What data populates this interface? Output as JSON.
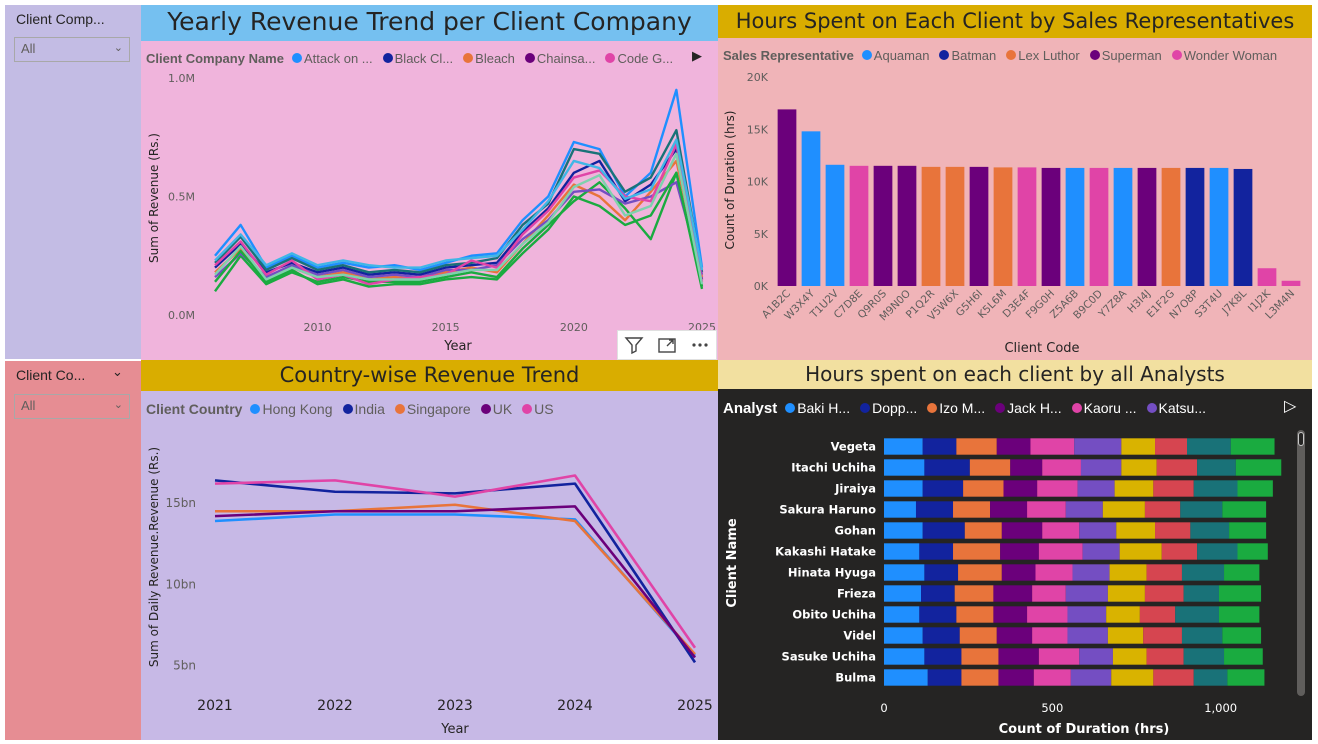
{
  "slicers": [
    {
      "label": "Client Comp...",
      "value": "All"
    },
    {
      "label": "Client Co...",
      "value": "All"
    }
  ],
  "colors": {
    "blue": "#1f8fff",
    "navy": "#12239e",
    "orange": "#e8743b",
    "purple": "#6b007b",
    "pink": "#e044a7",
    "violet": "#744ec2",
    "gold": "#d9b300",
    "red": "#d64550",
    "teal": "#197278",
    "green": "#1aab40"
  },
  "icons": [
    "filter-icon",
    "focus-mode-icon",
    "more-options-icon",
    "chevron-down-icon",
    "play-arrow-icon"
  ],
  "charts": {
    "yearly": {
      "title": "Yearly Revenue Trend per Client Company",
      "legend_title": "Client Company Name",
      "legend": [
        "Attack on ...",
        "Black Cl...",
        "Bleach",
        "Chainsa...",
        "Code G..."
      ],
      "xlabel": "Year",
      "ylabel": "Sum of Revenue (Rs.)"
    },
    "hours_sales": {
      "title": "Hours Spent on Each Client by Sales Representatives",
      "legend_title": "Sales Representative",
      "legend": [
        "Aquaman",
        "Batman",
        "Lex Luthor",
        "Superman",
        "Wonder Woman"
      ],
      "xlabel": "Client Code",
      "ylabel": "Count of Duration (hrs)"
    },
    "country": {
      "title": "Country-wise Revenue Trend",
      "legend_title": "Client Country",
      "legend": [
        "Hong Kong",
        "India",
        "Singapore",
        "UK",
        "US"
      ],
      "xlabel": "Year",
      "ylabel": "Sum of Daily Revenue.Revenue (Rs.)"
    },
    "analysts": {
      "title": "Hours spent on each client by all Analysts",
      "legend_title": "Analyst",
      "legend": [
        "Baki H...",
        "Dopp...",
        "Izo M...",
        "Jack H...",
        "Kaoru ...",
        "Katsu..."
      ],
      "xlabel": "Count of Duration (hrs)",
      "ylabel": "Client Name"
    }
  },
  "chart_data": [
    {
      "type": "line",
      "title": "Yearly Revenue Trend per Client Company",
      "xlabel": "Year",
      "ylabel": "Sum of Revenue (Rs.)",
      "x": [
        2006,
        2007,
        2008,
        2009,
        2010,
        2011,
        2012,
        2013,
        2014,
        2015,
        2016,
        2017,
        2018,
        2019,
        2020,
        2021,
        2022,
        2023,
        2024,
        2025
      ],
      "xticks": [
        "2010",
        "2015",
        "2020",
        "2025"
      ],
      "yticks": [
        "0.0M",
        "0.5M",
        "1.0M"
      ],
      "ylim": [
        0,
        1000000
      ],
      "series": [
        {
          "values": [
            250000,
            380000,
            200000,
            250000,
            200000,
            220000,
            200000,
            210000,
            190000,
            220000,
            250000,
            260000,
            400000,
            500000,
            730000,
            700000,
            500000,
            600000,
            950000,
            200000
          ]
        },
        {
          "values": [
            200000,
            300000,
            180000,
            220000,
            180000,
            200000,
            170000,
            180000,
            170000,
            200000,
            210000,
            220000,
            350000,
            450000,
            600000,
            650000,
            480000,
            550000,
            700000,
            150000
          ]
        },
        {
          "values": [
            180000,
            280000,
            150000,
            200000,
            160000,
            180000,
            150000,
            160000,
            150000,
            180000,
            200000,
            180000,
            300000,
            420000,
            550000,
            500000,
            400000,
            520000,
            650000,
            160000
          ]
        },
        {
          "values": [
            100000,
            250000,
            130000,
            180000,
            140000,
            160000,
            140000,
            140000,
            140000,
            160000,
            180000,
            160000,
            280000,
            380000,
            480000,
            560000,
            450000,
            320000,
            600000,
            120000
          ]
        },
        {
          "values": [
            220000,
            330000,
            190000,
            240000,
            190000,
            210000,
            180000,
            190000,
            180000,
            210000,
            220000,
            240000,
            380000,
            470000,
            700000,
            680000,
            520000,
            580000,
            780000,
            180000
          ]
        },
        {
          "values": [
            160000,
            260000,
            160000,
            210000,
            170000,
            190000,
            160000,
            170000,
            160000,
            190000,
            190000,
            210000,
            320000,
            400000,
            520000,
            530000,
            470000,
            500000,
            560000,
            170000
          ]
        },
        {
          "values": [
            210000,
            310000,
            170000,
            230000,
            150000,
            170000,
            130000,
            150000,
            160000,
            170000,
            230000,
            200000,
            340000,
            440000,
            580000,
            610000,
            500000,
            480000,
            720000,
            140000
          ]
        },
        {
          "values": [
            140000,
            270000,
            140000,
            190000,
            130000,
            150000,
            120000,
            130000,
            130000,
            150000,
            160000,
            150000,
            260000,
            360000,
            500000,
            460000,
            380000,
            420000,
            600000,
            110000
          ]
        },
        {
          "values": [
            230000,
            340000,
            210000,
            260000,
            210000,
            230000,
            210000,
            200000,
            200000,
            230000,
            240000,
            250000,
            360000,
            480000,
            650000,
            620000,
            490000,
            530000,
            740000,
            190000
          ]
        },
        {
          "values": [
            170000,
            290000,
            150000,
            200000,
            160000,
            170000,
            150000,
            150000,
            150000,
            170000,
            190000,
            190000,
            300000,
            390000,
            540000,
            590000,
            420000,
            460000,
            680000,
            130000
          ]
        }
      ]
    },
    {
      "type": "bar",
      "title": "Hours Spent on Each Client by Sales Representatives",
      "xlabel": "Client Code",
      "ylabel": "Count of Duration (hrs)",
      "yticks": [
        "0K",
        "5K",
        "10K",
        "15K",
        "20K"
      ],
      "ylim": [
        0,
        20000
      ],
      "categories": [
        "A1B2C",
        "W3X4Y",
        "T1U2V",
        "C7D8E",
        "Q9R0S",
        "M9N0O",
        "P1Q2R",
        "V5W6X",
        "G5H6I",
        "K5L6M",
        "D3E4F",
        "F9G0H",
        "Z5A6B",
        "B9C0D",
        "Y7Z8A",
        "H3I4J",
        "E1F2G",
        "N7O8P",
        "S3T4U",
        "J7K8L",
        "I1J2K",
        "L3M4N"
      ],
      "values": [
        16900,
        14800,
        11600,
        11500,
        11500,
        11500,
        11400,
        11400,
        11400,
        11350,
        11350,
        11300,
        11300,
        11300,
        11300,
        11300,
        11300,
        11300,
        11300,
        11200,
        1700,
        500
      ],
      "series_by_bar": [
        "Superman",
        "Aquaman",
        "Aquaman",
        "Wonder Woman",
        "Superman",
        "Superman",
        "Lex Luthor",
        "Lex Luthor",
        "Superman",
        "Lex Luthor",
        "Wonder Woman",
        "Superman",
        "Aquaman",
        "Wonder Woman",
        "Aquaman",
        "Superman",
        "Lex Luthor",
        "Batman",
        "Aquaman",
        "Batman",
        "Wonder Woman",
        "Wonder Woman"
      ]
    },
    {
      "type": "line",
      "title": "Country-wise Revenue Trend",
      "xlabel": "Year",
      "ylabel": "Sum of Daily Revenue.Revenue (Rs.)",
      "x": [
        2021,
        2022,
        2023,
        2024,
        2025
      ],
      "xticks": [
        "2021",
        "2022",
        "2023",
        "2024",
        "2025"
      ],
      "yticks": [
        "5bn",
        "10bn",
        "15bn"
      ],
      "ylim": [
        3500000000,
        19500000000
      ],
      "series": [
        {
          "name": "Hong Kong",
          "values": [
            13900000000,
            14300000000,
            14300000000,
            14000000000,
            5600000000
          ]
        },
        {
          "name": "India",
          "values": [
            16400000000,
            15700000000,
            15600000000,
            16200000000,
            5200000000
          ]
        },
        {
          "name": "Singapore",
          "values": [
            14500000000,
            14500000000,
            14900000000,
            13900000000,
            5700000000
          ]
        },
        {
          "name": "UK",
          "values": [
            14200000000,
            14500000000,
            14500000000,
            14800000000,
            5500000000
          ]
        },
        {
          "name": "US",
          "values": [
            16200000000,
            16400000000,
            15400000000,
            16700000000,
            6100000000
          ]
        }
      ]
    },
    {
      "type": "bar",
      "orientation": "horizontal-stacked",
      "title": "Hours spent on each client by all Analysts",
      "xlabel": "Count of Duration (hrs)",
      "ylabel": "Client Name",
      "xticks": [
        "0",
        "500",
        "1,000"
      ],
      "xlim": [
        0,
        1200
      ],
      "categories": [
        "Vegeta",
        "Itachi Uchiha",
        "Jiraiya",
        "Sakura Haruno",
        "Gohan",
        "Kakashi Hatake",
        "Hinata Hyuga",
        "Frieza",
        "Obito Uchiha",
        "Videl",
        "Sasuke Uchiha",
        "Bulma"
      ],
      "segments": [
        [
          115,
          100,
          120,
          100,
          130,
          140,
          100,
          95,
          130,
          130
        ],
        [
          120,
          135,
          120,
          95,
          115,
          120,
          105,
          120,
          115,
          135
        ],
        [
          115,
          120,
          120,
          100,
          120,
          110,
          115,
          120,
          130,
          105
        ],
        [
          95,
          110,
          110,
          110,
          115,
          110,
          125,
          105,
          125,
          130
        ],
        [
          115,
          125,
          110,
          120,
          110,
          110,
          115,
          105,
          115,
          110
        ],
        [
          105,
          100,
          140,
          115,
          130,
          110,
          125,
          105,
          120,
          90
        ],
        [
          120,
          100,
          130,
          100,
          110,
          110,
          110,
          105,
          125,
          105
        ],
        [
          110,
          100,
          115,
          115,
          100,
          125,
          110,
          115,
          105,
          125
        ],
        [
          105,
          110,
          110,
          100,
          120,
          115,
          100,
          105,
          130,
          120
        ],
        [
          115,
          110,
          110,
          105,
          105,
          120,
          105,
          115,
          120,
          115
        ],
        [
          120,
          110,
          110,
          120,
          120,
          100,
          100,
          110,
          120,
          115
        ],
        [
          130,
          100,
          110,
          105,
          110,
          120,
          125,
          120,
          100,
          110
        ]
      ]
    }
  ]
}
